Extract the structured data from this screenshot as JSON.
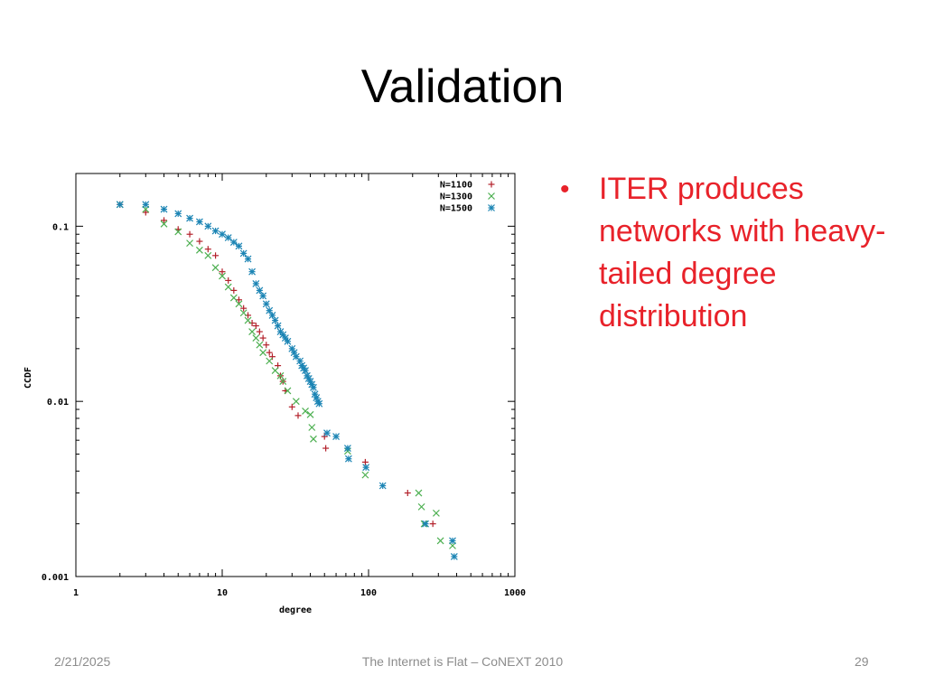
{
  "slide": {
    "title": "Validation",
    "bullet": "ITER produces\nnetworks with heavy-\ntailed degree\ndistribution",
    "footer_date": "2/21/2025",
    "footer_center": "The Internet is Flat – CoNEXT 2010",
    "footer_page": "29"
  },
  "colors": {
    "title": "#000000",
    "bullet": "#e8222a",
    "footer": "#8c8c8c"
  },
  "chart_data": {
    "type": "scatter",
    "xlabel": "degree",
    "ylabel": "CCDF",
    "xscale": "log",
    "yscale": "log",
    "xlim": [
      1,
      1000
    ],
    "ylim": [
      0.001,
      0.2
    ],
    "xticks": [
      {
        "v": 1,
        "label": "1"
      },
      {
        "v": 10,
        "label": "10"
      },
      {
        "v": 100,
        "label": "100"
      },
      {
        "v": 1000,
        "label": "1000"
      }
    ],
    "yticks": [
      {
        "v": 0.001,
        "label": "0.001"
      },
      {
        "v": 0.01,
        "label": "0.01"
      },
      {
        "v": 0.1,
        "label": "0.1"
      }
    ],
    "grid": false,
    "legend_position": "top-right",
    "series": [
      {
        "name": "N=1100",
        "marker": "plus",
        "color": "#b3202a",
        "points": [
          [
            2,
            0.133
          ],
          [
            3,
            0.12
          ],
          [
            4,
            0.108
          ],
          [
            5,
            0.096
          ],
          [
            6,
            0.09
          ],
          [
            7,
            0.082
          ],
          [
            8,
            0.074
          ],
          [
            9,
            0.068
          ],
          [
            10,
            0.055
          ],
          [
            11,
            0.049
          ],
          [
            12,
            0.043
          ],
          [
            13,
            0.038
          ],
          [
            14,
            0.034
          ],
          [
            15,
            0.031
          ],
          [
            16,
            0.028
          ],
          [
            17,
            0.027
          ],
          [
            18,
            0.025
          ],
          [
            19,
            0.023
          ],
          [
            20,
            0.021
          ],
          [
            21,
            0.019
          ],
          [
            22,
            0.018
          ],
          [
            24,
            0.016
          ],
          [
            25,
            0.014
          ],
          [
            26,
            0.013
          ],
          [
            27,
            0.0115
          ],
          [
            30,
            0.0093
          ],
          [
            33,
            0.0083
          ],
          [
            50,
            0.0063
          ],
          [
            51,
            0.0054
          ],
          [
            95,
            0.0045
          ],
          [
            185,
            0.003
          ],
          [
            275,
            0.002
          ]
        ]
      },
      {
        "name": "N=1300",
        "marker": "cross",
        "color": "#4caf50",
        "points": [
          [
            2,
            0.133
          ],
          [
            3,
            0.125
          ],
          [
            4,
            0.103
          ],
          [
            5,
            0.093
          ],
          [
            6,
            0.08
          ],
          [
            7,
            0.073
          ],
          [
            8,
            0.068
          ],
          [
            9,
            0.058
          ],
          [
            10,
            0.052
          ],
          [
            11,
            0.045
          ],
          [
            12,
            0.039
          ],
          [
            13,
            0.036
          ],
          [
            14,
            0.032
          ],
          [
            15,
            0.029
          ],
          [
            16,
            0.025
          ],
          [
            17,
            0.023
          ],
          [
            18,
            0.021
          ],
          [
            19,
            0.019
          ],
          [
            21,
            0.017
          ],
          [
            23,
            0.015
          ],
          [
            25,
            0.014
          ],
          [
            26,
            0.013
          ],
          [
            28,
            0.0115
          ],
          [
            32,
            0.01
          ],
          [
            37,
            0.0088
          ],
          [
            40,
            0.0084
          ],
          [
            41,
            0.0071
          ],
          [
            42,
            0.0061
          ],
          [
            72,
            0.0052
          ],
          [
            95,
            0.0038
          ],
          [
            220,
            0.003
          ],
          [
            230,
            0.0025
          ],
          [
            240,
            0.002
          ],
          [
            290,
            0.0023
          ],
          [
            310,
            0.0016
          ],
          [
            375,
            0.0015
          ]
        ]
      },
      {
        "name": "N=1500",
        "marker": "star",
        "color": "#1b84b4",
        "points": [
          [
            2,
            0.133
          ],
          [
            3,
            0.133
          ],
          [
            4,
            0.125
          ],
          [
            5,
            0.118
          ],
          [
            6,
            0.111
          ],
          [
            7,
            0.106
          ],
          [
            8,
            0.1
          ],
          [
            9,
            0.094
          ],
          [
            10,
            0.09
          ],
          [
            11,
            0.086
          ],
          [
            12,
            0.081
          ],
          [
            13,
            0.077
          ],
          [
            14,
            0.07
          ],
          [
            15,
            0.065
          ],
          [
            16,
            0.055
          ],
          [
            17,
            0.047
          ],
          [
            18,
            0.043
          ],
          [
            19,
            0.04
          ],
          [
            20,
            0.036
          ],
          [
            21,
            0.033
          ],
          [
            22,
            0.031
          ],
          [
            23,
            0.029
          ],
          [
            24,
            0.027
          ],
          [
            25,
            0.025
          ],
          [
            26,
            0.024
          ],
          [
            27,
            0.023
          ],
          [
            28,
            0.022
          ],
          [
            30,
            0.02
          ],
          [
            31,
            0.019
          ],
          [
            32,
            0.018
          ],
          [
            34,
            0.017
          ],
          [
            35,
            0.016
          ],
          [
            36,
            0.0155
          ],
          [
            37,
            0.015
          ],
          [
            38,
            0.014
          ],
          [
            39,
            0.0135
          ],
          [
            40,
            0.013
          ],
          [
            41,
            0.0125
          ],
          [
            42,
            0.012
          ],
          [
            43,
            0.011
          ],
          [
            44,
            0.0105
          ],
          [
            45,
            0.01
          ],
          [
            46,
            0.0097
          ],
          [
            52,
            0.0066
          ],
          [
            60,
            0.0063
          ],
          [
            72,
            0.0054
          ],
          [
            73,
            0.0047
          ],
          [
            96,
            0.0042
          ],
          [
            125,
            0.0033
          ],
          [
            245,
            0.002
          ],
          [
            375,
            0.0016
          ],
          [
            385,
            0.0013
          ]
        ]
      }
    ]
  }
}
